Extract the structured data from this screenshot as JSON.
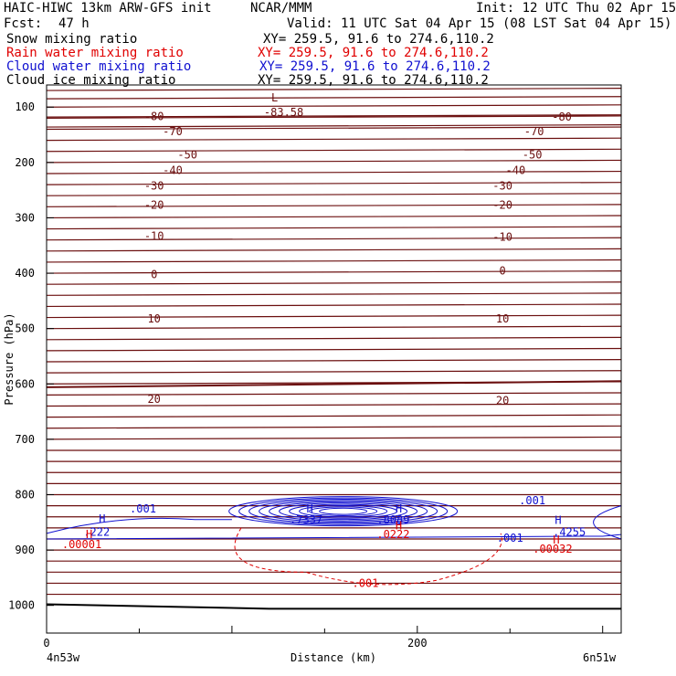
{
  "header": {
    "title_left": "HAIC-HIWC 13km ARW-GFS init",
    "org": "NCAR/MMM",
    "init": "Init: 12 UTC Thu 02 Apr 15",
    "fcst_label": "Fcst:",
    "fcst_value": "47 h",
    "valid": "Valid: 11 UTC Sat 04 Apr 15 (08 LST Sat 04 Apr 15)"
  },
  "fields": [
    {
      "name": "Snow mixing ratio",
      "xy": "XY= 259.5, 91.6 to 274.6,110.2",
      "color": "#000000"
    },
    {
      "name": "Rain water mixing ratio",
      "xy": "XY= 259.5, 91.6 to 274.6,110.2",
      "color": "#e00000"
    },
    {
      "name": "Cloud water mixing ratio",
      "xy": "XY= 259.5, 91.6 to 274.6,110.2",
      "color": "#1010d0"
    },
    {
      "name": "Cloud ice mixing ratio",
      "xy": "XY= 259.5, 91.6 to 274.6,110.2",
      "color": "#000000"
    }
  ],
  "colors": {
    "temperature": "#6b0f0f",
    "rain": "#e00000",
    "cloud": "#1010d0",
    "axis": "#000000"
  },
  "chart_data": {
    "type": "contour",
    "xlabel": "Distance (km)",
    "ylabel": "Pressure (hPa)",
    "xlim": [
      0,
      310
    ],
    "ylim": [
      1050,
      60
    ],
    "xticks": [
      0,
      200
    ],
    "yticks": [
      100,
      200,
      300,
      400,
      500,
      600,
      700,
      800,
      900,
      1000
    ],
    "endpoints": {
      "left": "4n53w",
      "right": "6n51w"
    },
    "temperature_labels": [
      {
        "text": "-80",
        "x": 58,
        "p": 117
      },
      {
        "text": "-80",
        "x": 278,
        "p": 118
      },
      {
        "text": "-70",
        "x": 68,
        "p": 144
      },
      {
        "text": "-70",
        "x": 263,
        "p": 144
      },
      {
        "text": "-50",
        "x": 76,
        "p": 186
      },
      {
        "text": "-50",
        "x": 262,
        "p": 186
      },
      {
        "text": "-40",
        "x": 68,
        "p": 214
      },
      {
        "text": "-40",
        "x": 253,
        "p": 214
      },
      {
        "text": "-30",
        "x": 58,
        "p": 242
      },
      {
        "text": "-30",
        "x": 246,
        "p": 242
      },
      {
        "text": "-20",
        "x": 58,
        "p": 277
      },
      {
        "text": "-20",
        "x": 246,
        "p": 277
      },
      {
        "text": "-10",
        "x": 58,
        "p": 333
      },
      {
        "text": "-10",
        "x": 246,
        "p": 335
      },
      {
        "text": "0",
        "x": 58,
        "p": 402
      },
      {
        "text": "0",
        "x": 246,
        "p": 396
      },
      {
        "text": "10",
        "x": 58,
        "p": 482
      },
      {
        "text": "10",
        "x": 246,
        "p": 482
      },
      {
        "text": "20",
        "x": 58,
        "p": 628
      },
      {
        "text": "20",
        "x": 246,
        "p": 630
      }
    ],
    "low": {
      "text": "L",
      "value": "-83.58",
      "x": 123,
      "p": 80
    },
    "cloud_labels": [
      {
        "text": "H",
        "x": 30,
        "p": 844
      },
      {
        "text": ".222",
        "x": 27,
        "p": 868
      },
      {
        "text": ".001",
        "x": 52,
        "p": 826
      },
      {
        "text": "H",
        "x": 142,
        "p": 826
      },
      {
        "text": ".7337",
        "x": 140,
        "p": 845
      },
      {
        "text": "H",
        "x": 190,
        "p": 826
      },
      {
        "text": ".8089",
        "x": 187,
        "p": 845
      },
      {
        "text": ".001",
        "x": 262,
        "p": 811
      },
      {
        "text": "H",
        "x": 276,
        "p": 846
      },
      {
        "text": ".4255",
        "x": 282,
        "p": 868
      },
      {
        "text": ".001",
        "x": 250,
        "p": 878
      }
    ],
    "rain_labels": [
      {
        "text": "H",
        "x": 23,
        "p": 872
      },
      {
        "text": ".00001",
        "x": 19,
        "p": 890
      },
      {
        "text": "H",
        "x": 190,
        "p": 856
      },
      {
        "text": ".0222",
        "x": 187,
        "p": 872
      },
      {
        "text": "H",
        "x": 275,
        "p": 882
      },
      {
        "text": ".00032",
        "x": 273,
        "p": 898
      },
      {
        "text": ".001",
        "x": 172,
        "p": 960
      }
    ]
  }
}
